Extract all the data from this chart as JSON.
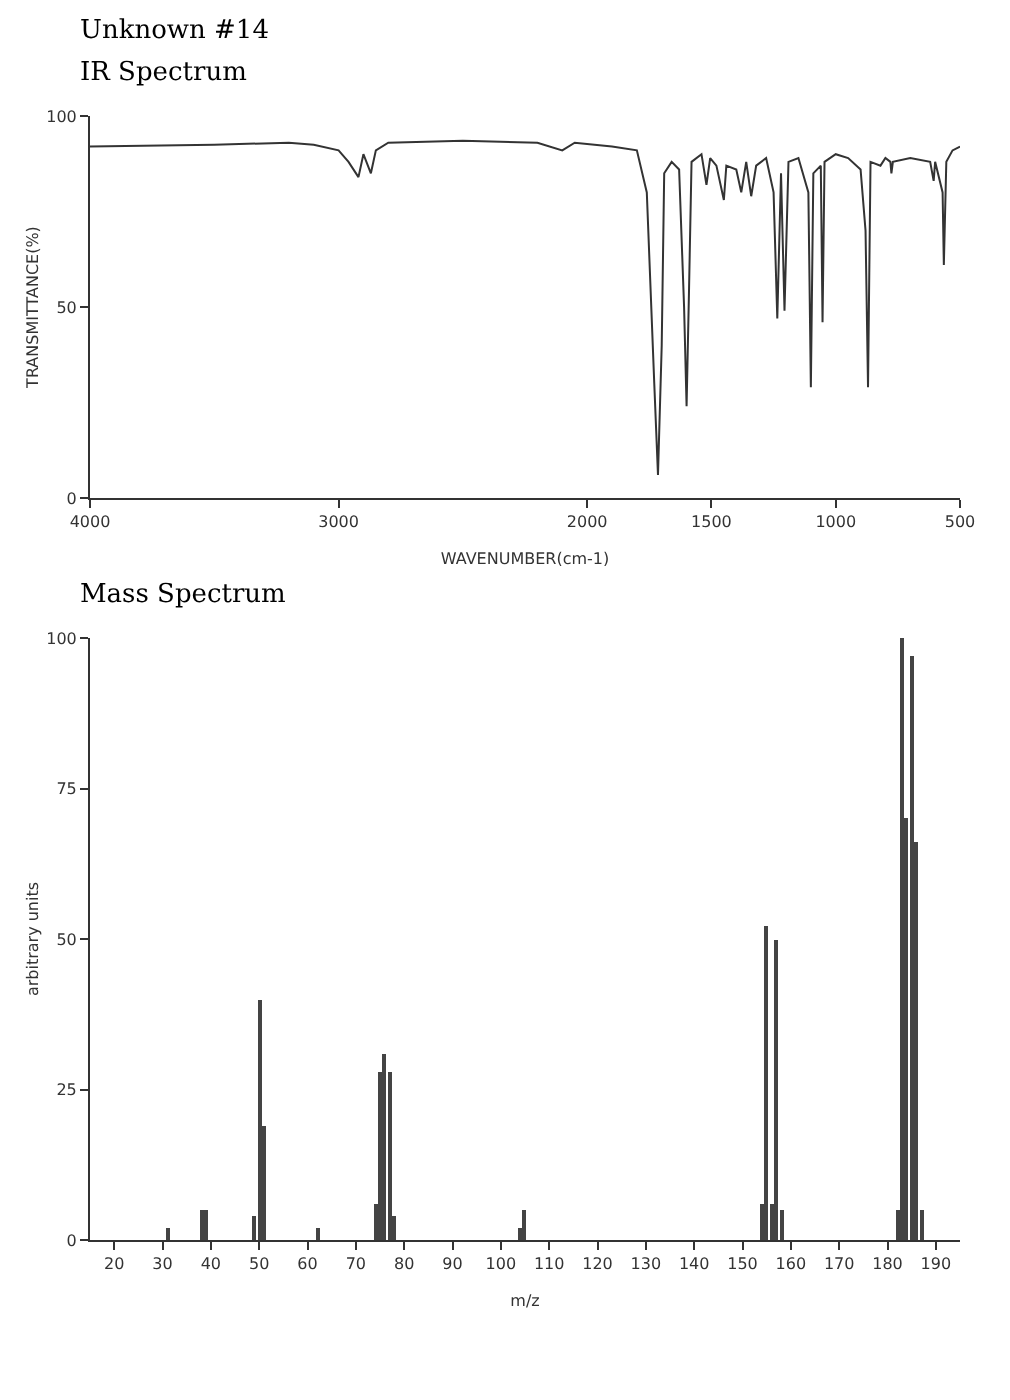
{
  "chart_data": [
    {
      "type": "line",
      "title": "IR Spectrum",
      "annotations": [
        "Unknown #14"
      ],
      "xlabel": "WAVENUMBER(cm-1)",
      "ylabel": "TRANSMITTANCE(%)",
      "x": [
        4000,
        3500,
        3200,
        3100,
        3000,
        2960,
        2920,
        2900,
        2870,
        2850,
        2800,
        2500,
        2200,
        2100,
        2050,
        1900,
        1800,
        1760,
        1730,
        1715,
        1700,
        1690,
        1660,
        1630,
        1610,
        1600,
        1590,
        1580,
        1540,
        1520,
        1505,
        1480,
        1450,
        1440,
        1400,
        1380,
        1360,
        1340,
        1320,
        1280,
        1250,
        1235,
        1220,
        1206,
        1190,
        1150,
        1110,
        1100,
        1090,
        1060,
        1053,
        1045,
        1000,
        950,
        900,
        880,
        870,
        860,
        820,
        800,
        780,
        776,
        770,
        700,
        620,
        606,
        600,
        570,
        565,
        555,
        530,
        500
      ],
      "series": [
        {
          "color": "#333333",
          "values": [
            92,
            92.5,
            93,
            92.5,
            91,
            88,
            84,
            90,
            85,
            91,
            93,
            93.5,
            93,
            91,
            93,
            92,
            91,
            80,
            30,
            6,
            40,
            85,
            88,
            86,
            50,
            24,
            55,
            88,
            90,
            82,
            89,
            87,
            78,
            87,
            86,
            80,
            88,
            79,
            87,
            89,
            80,
            47,
            85,
            49,
            88,
            89,
            80,
            29,
            85,
            87,
            46,
            88,
            90,
            89,
            86,
            70,
            29,
            88,
            87,
            89,
            88,
            85,
            88,
            89,
            88,
            83,
            88,
            80,
            61,
            88,
            91,
            92
          ]
        }
      ],
      "xlim": [
        4000,
        500
      ],
      "xticks": [
        4000,
        3000,
        2000,
        1500,
        1000,
        500
      ],
      "ylim": [
        0,
        100
      ],
      "yticks": [
        0,
        50,
        100
      ],
      "marker": "none",
      "line_style": "solid"
    },
    {
      "type": "bar",
      "title": "Mass Spectrum",
      "xlabel": "m/z",
      "ylabel": "arbitrary units",
      "x": [
        31,
        38,
        39,
        49,
        50,
        51,
        62,
        74,
        75,
        76,
        77,
        78,
        104,
        105,
        154,
        155,
        156,
        157,
        158,
        182,
        183,
        184,
        185,
        186,
        187
      ],
      "series": [
        {
          "color": "#444444",
          "values": [
            2,
            5,
            5,
            4,
            40,
            19,
            2,
            6,
            28,
            31,
            28,
            4,
            2,
            5,
            6,
            52,
            6,
            50,
            5,
            5,
            100,
            70,
            97,
            66,
            5
          ]
        }
      ],
      "xlim": [
        15,
        195
      ],
      "xticks": [
        20,
        30,
        40,
        50,
        60,
        70,
        80,
        90,
        100,
        110,
        120,
        130,
        140,
        150,
        160,
        170,
        180,
        190
      ],
      "ylim": [
        0,
        100
      ],
      "yticks": [
        0,
        25,
        50,
        75,
        100
      ]
    }
  ]
}
